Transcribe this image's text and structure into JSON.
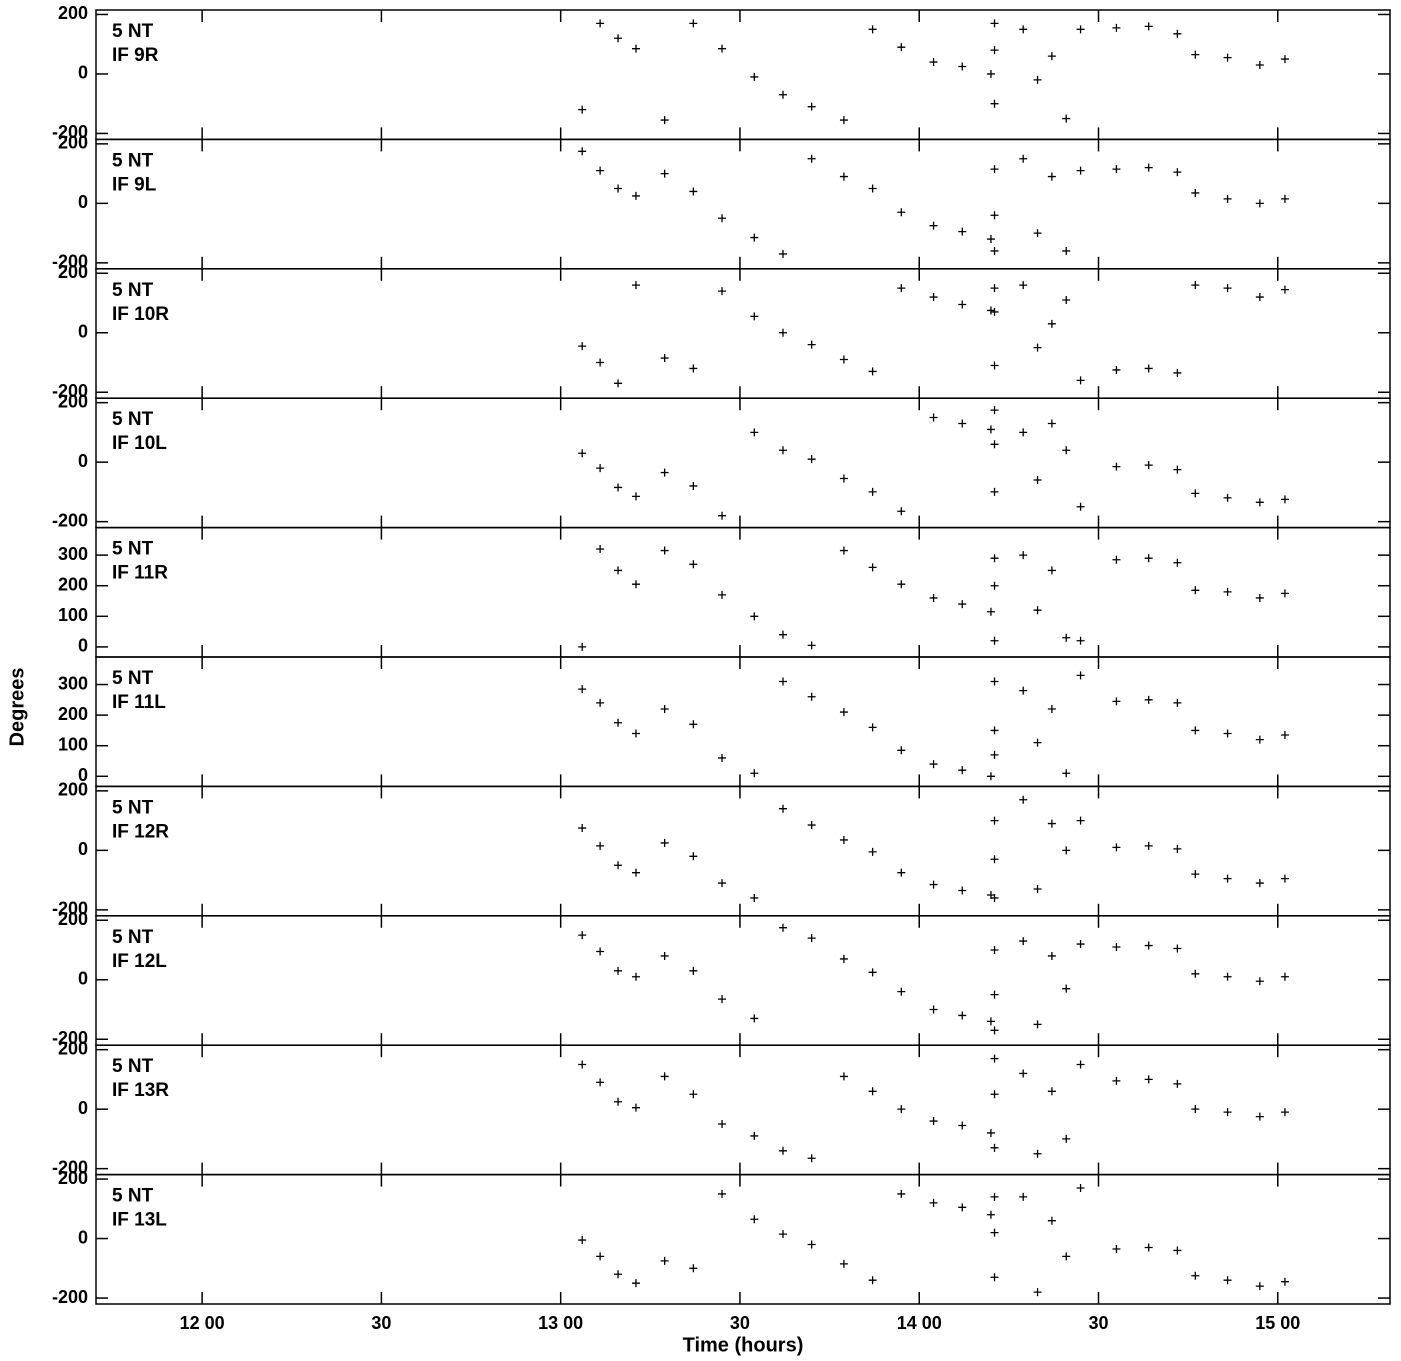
{
  "chart_data": {
    "type": "scatter",
    "xlabel": "Time (hours)",
    "ylabel": "Degrees",
    "xlim": [
      11.704,
      15.313
    ],
    "xticks": [
      {
        "value": 12,
        "label": "12 00"
      },
      {
        "value": 12.5,
        "label": "30"
      },
      {
        "value": 13,
        "label": "13 00"
      },
      {
        "value": 13.5,
        "label": "30"
      },
      {
        "value": 14,
        "label": "14 00"
      },
      {
        "value": 14.5,
        "label": "30"
      },
      {
        "value": 15,
        "label": "15 00"
      }
    ],
    "color": "#000000",
    "x": [
      13.06,
      13.11,
      13.16,
      13.21,
      13.29,
      13.37,
      13.45,
      13.54,
      13.62,
      13.7,
      13.79,
      13.87,
      13.95,
      14.04,
      14.12,
      14.2,
      14.21,
      14.21,
      14.21,
      14.29,
      14.33,
      14.37,
      14.41,
      14.45,
      14.55,
      14.64,
      14.72,
      14.77,
      14.86,
      14.95,
      15.02
    ],
    "panels": [
      {
        "source": "5 NT",
        "label": "IF 9R",
        "ylim": [
          -220,
          215
        ],
        "yticks": [
          -200,
          0,
          200
        ],
        "values": [
          -120,
          170,
          120,
          85,
          -155,
          170,
          85,
          -10,
          -70,
          -110,
          -155,
          150,
          90,
          40,
          25,
          0,
          170,
          -100,
          80,
          150,
          -20,
          60,
          -150,
          150,
          155,
          160,
          135,
          65,
          55,
          30,
          50
        ]
      },
      {
        "source": "5 NT",
        "label": "IF 9L",
        "ylim": [
          -220,
          215
        ],
        "yticks": [
          -200,
          0,
          200
        ],
        "values": [
          175,
          110,
          50,
          25,
          100,
          40,
          -50,
          -115,
          -170,
          150,
          90,
          50,
          -30,
          -75,
          -95,
          -120,
          115,
          -40,
          -160,
          150,
          -100,
          90,
          -160,
          110,
          115,
          120,
          105,
          35,
          15,
          0,
          15
        ]
      },
      {
        "source": "5 NT",
        "label": "IF 10R",
        "ylim": [
          -220,
          215
        ],
        "yticks": [
          -200,
          0,
          200
        ],
        "values": [
          -45,
          -100,
          -170,
          160,
          -85,
          -120,
          140,
          55,
          0,
          -40,
          -90,
          -130,
          150,
          120,
          95,
          75,
          150,
          70,
          -110,
          160,
          -50,
          30,
          110,
          -160,
          -125,
          -120,
          -135,
          160,
          150,
          120,
          145
        ]
      },
      {
        "source": "5 NT",
        "label": "IF 10L",
        "ylim": [
          -220,
          215
        ],
        "yticks": [
          -200,
          0,
          200
        ],
        "values": [
          30,
          -20,
          -85,
          -115,
          -35,
          -80,
          -180,
          100,
          40,
          10,
          -55,
          -100,
          -165,
          150,
          130,
          110,
          175,
          60,
          -100,
          100,
          -60,
          130,
          40,
          -150,
          -15,
          -10,
          -25,
          -105,
          -120,
          -135,
          -125
        ]
      },
      {
        "source": "5 NT",
        "label": "IF 11R",
        "ylim": [
          -33,
          390
        ],
        "yticks": [
          0,
          100,
          200,
          300
        ],
        "values": [
          0,
          320,
          250,
          205,
          315,
          270,
          170,
          100,
          40,
          5,
          315,
          260,
          205,
          160,
          140,
          115,
          290,
          200,
          20,
          300,
          120,
          250,
          30,
          20,
          285,
          290,
          275,
          185,
          180,
          160,
          175
        ]
      },
      {
        "source": "5 NT",
        "label": "IF 11L",
        "ylim": [
          -33,
          390
        ],
        "yticks": [
          0,
          100,
          200,
          300
        ],
        "values": [
          285,
          240,
          175,
          140,
          220,
          170,
          60,
          10,
          310,
          260,
          210,
          160,
          85,
          40,
          20,
          0,
          310,
          150,
          70,
          280,
          110,
          220,
          10,
          330,
          245,
          250,
          240,
          150,
          140,
          120,
          135
        ]
      },
      {
        "source": "5 NT",
        "label": "IF 12R",
        "ylim": [
          -220,
          215
        ],
        "yticks": [
          -200,
          0,
          200
        ],
        "values": [
          75,
          15,
          -50,
          -75,
          25,
          -20,
          -110,
          -160,
          140,
          85,
          35,
          -5,
          -75,
          -115,
          -135,
          -150,
          100,
          -30,
          -160,
          170,
          -130,
          90,
          0,
          100,
          10,
          15,
          5,
          -80,
          -95,
          -110,
          -95
        ]
      },
      {
        "source": "5 NT",
        "label": "IF 12L",
        "ylim": [
          -220,
          215
        ],
        "yticks": [
          -200,
          0,
          200
        ],
        "values": [
          150,
          95,
          30,
          10,
          80,
          30,
          -65,
          -130,
          175,
          140,
          70,
          25,
          -40,
          -100,
          -120,
          -140,
          100,
          -50,
          -170,
          130,
          -150,
          80,
          -30,
          120,
          110,
          115,
          105,
          20,
          10,
          -5,
          10
        ]
      },
      {
        "source": "5 NT",
        "label": "IF 13R",
        "ylim": [
          -220,
          215
        ],
        "yticks": [
          -200,
          0,
          200
        ],
        "values": [
          150,
          90,
          25,
          5,
          110,
          50,
          -50,
          -90,
          -140,
          -165,
          110,
          60,
          0,
          -40,
          -55,
          -80,
          170,
          50,
          -130,
          120,
          -150,
          60,
          -100,
          150,
          95,
          100,
          85,
          0,
          -10,
          -25,
          -10
        ]
      },
      {
        "source": "5 NT",
        "label": "IF 13L",
        "ylim": [
          -220,
          215
        ],
        "yticks": [
          -200,
          0,
          200
        ],
        "values": [
          -5,
          -60,
          -120,
          -150,
          -75,
          -100,
          150,
          65,
          15,
          -20,
          -85,
          -140,
          150,
          120,
          105,
          80,
          140,
          20,
          -130,
          140,
          -180,
          60,
          -60,
          170,
          -35,
          -30,
          -40,
          -125,
          -140,
          -160,
          -145
        ]
      }
    ]
  }
}
